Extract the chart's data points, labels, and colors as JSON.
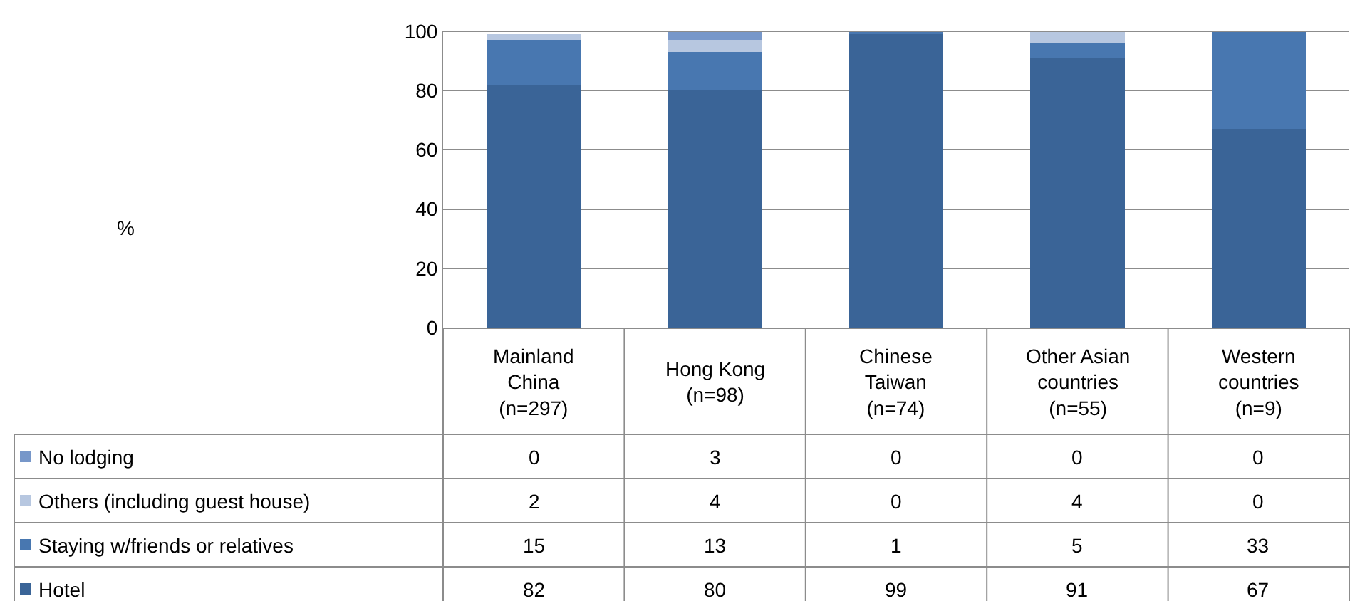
{
  "chart_data": {
    "type": "bar",
    "stacked": true,
    "annotations": [
      "%"
    ],
    "categories": [
      "Mainland\nChina\n(n=297)",
      "Hong Kong\n(n=98)",
      "Chinese\nTaiwan\n(n=74)",
      "Other Asian\ncountries\n(n=55)",
      "Western\ncountries\n(n=9)"
    ],
    "series": [
      {
        "name": "Hotel",
        "color": "#3a6497",
        "values": [
          82,
          80,
          99,
          91,
          67
        ]
      },
      {
        "name": "Staying w/friends or relatives",
        "color": "#4877b0",
        "values": [
          15,
          13,
          1,
          5,
          33
        ]
      },
      {
        "name": "Others (including guest house)",
        "color": "#b7c7e0",
        "values": [
          2,
          4,
          0,
          4,
          0
        ]
      },
      {
        "name": "No lodging",
        "color": "#7797c9",
        "values": [
          0,
          3,
          0,
          0,
          0
        ]
      }
    ],
    "ylim": [
      0,
      100
    ],
    "yticks": [
      0,
      20,
      40,
      60,
      80,
      100
    ],
    "grid": "y",
    "data_labels": true,
    "legend": "bottom left"
  }
}
